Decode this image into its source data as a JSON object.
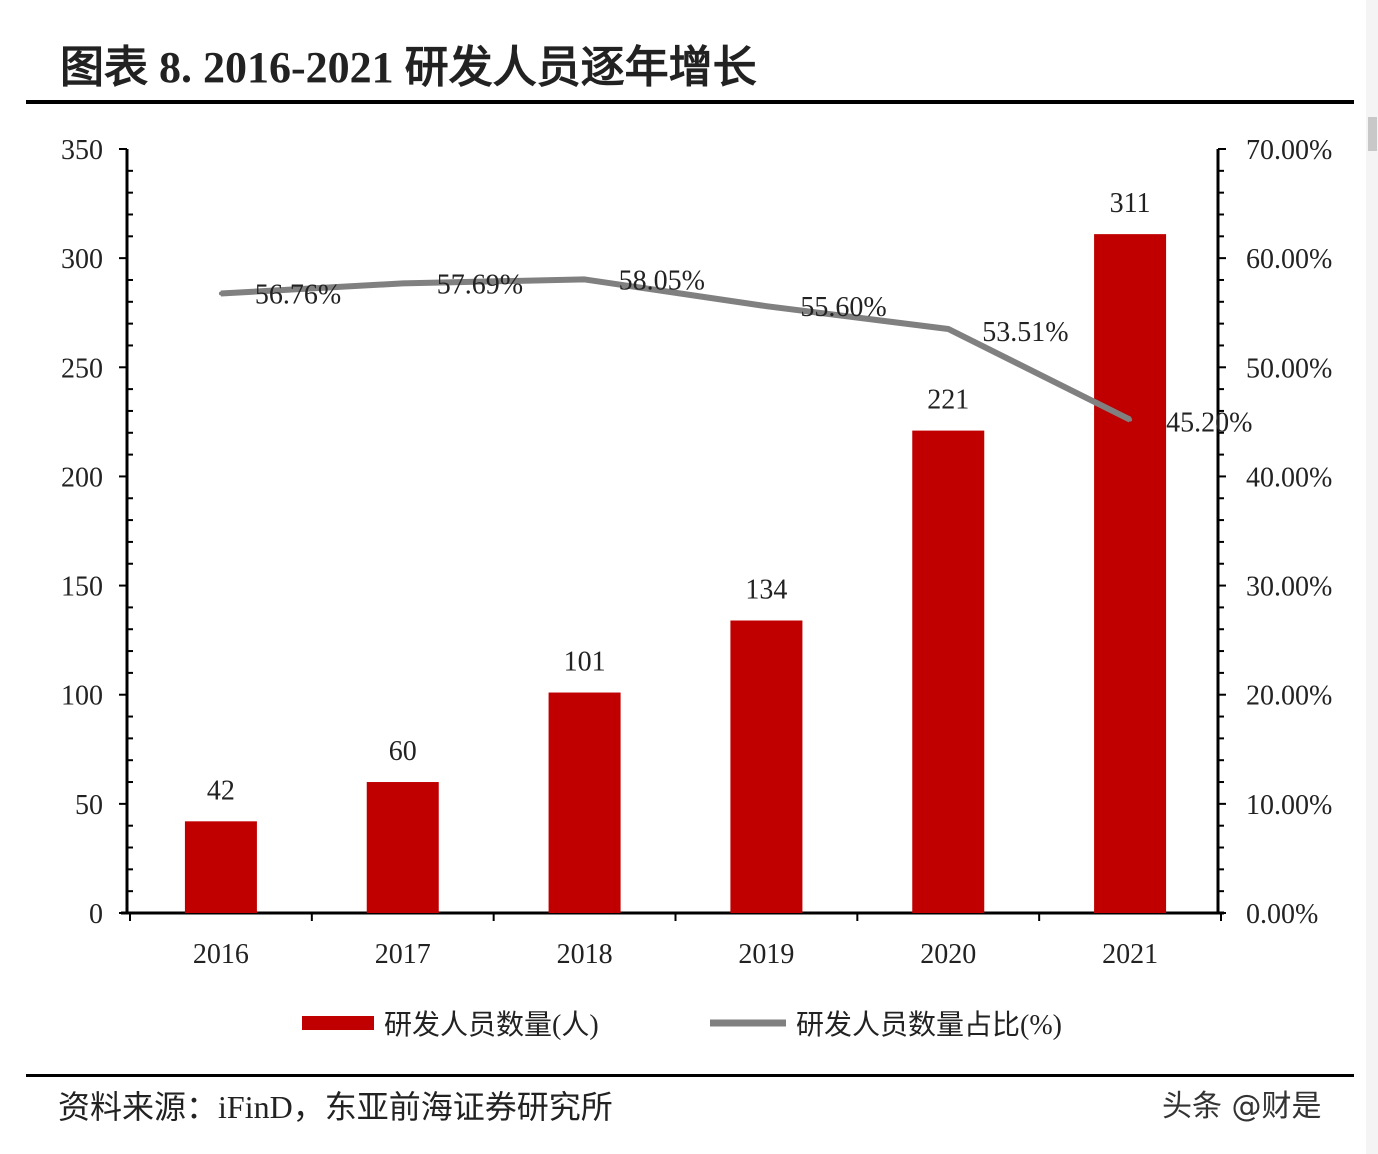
{
  "header": {
    "title": "图表 8.   2016-2021 研发人员逐年增长"
  },
  "footer": {
    "source": "资料来源：iFinD，东亚前海证券研究所",
    "watermark": "头条 @财是"
  },
  "chart_data": {
    "type": "bar+line",
    "title": "图表 8.   2016-2021 研发人员逐年增长",
    "categories": [
      "2016",
      "2017",
      "2018",
      "2019",
      "2020",
      "2021"
    ],
    "series": [
      {
        "name": "研发人员数量(人)",
        "type": "bar",
        "axis": "left",
        "color": "#c00000",
        "values": [
          42,
          60,
          101,
          134,
          221,
          311
        ],
        "labels": [
          "42",
          "60",
          "101",
          "134",
          "221",
          "311"
        ]
      },
      {
        "name": "研发人员数量占比(%)",
        "type": "line",
        "axis": "right",
        "color": "#808080",
        "values": [
          56.76,
          57.69,
          58.05,
          55.6,
          53.51,
          45.2
        ],
        "labels": [
          "56.76%",
          "57.69%",
          "58.05%",
          "55.60%",
          "53.51%",
          "45.20%"
        ]
      }
    ],
    "y_left": {
      "range": [
        0,
        350
      ],
      "ticks": [
        "0",
        "50",
        "100",
        "150",
        "200",
        "250",
        "300",
        "350"
      ]
    },
    "y_right": {
      "range": [
        0,
        70
      ],
      "ticks": [
        "0.00%",
        "10.00%",
        "20.00%",
        "30.00%",
        "40.00%",
        "50.00%",
        "60.00%",
        "70.00%"
      ]
    },
    "grid": false,
    "legend": "bottom"
  }
}
